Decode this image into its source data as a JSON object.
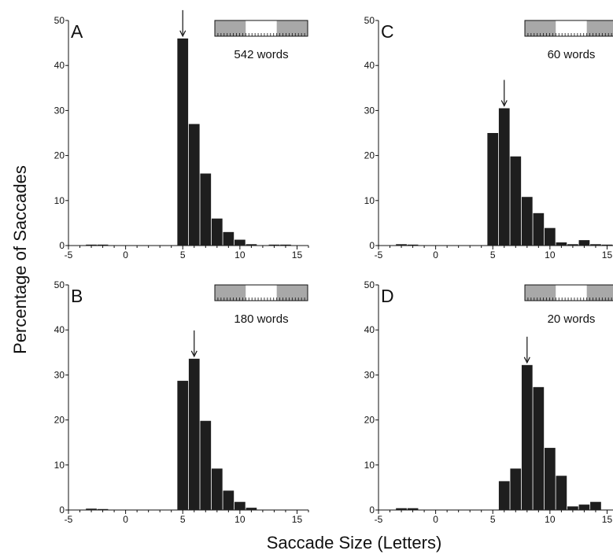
{
  "figure": {
    "ylabel": "Percentage of Saccades",
    "xlabel": "Saccade Size (Letters)",
    "colors": {
      "bar": "#1e1e1e",
      "axis": "#111111",
      "strip_gray": "#a8a8a8",
      "strip_white": "#ffffff"
    }
  },
  "chart_data": [
    {
      "type": "bar",
      "panel": "A",
      "words_label": "542 words",
      "arrow_at": 5,
      "x": [
        -3,
        -2,
        -1,
        0,
        1,
        2,
        3,
        4,
        5,
        6,
        7,
        8,
        9,
        10,
        11,
        12,
        13,
        14,
        15
      ],
      "values": [
        0.2,
        0.1,
        0,
        0,
        0,
        0,
        0,
        0,
        46,
        27,
        16,
        6,
        3,
        1.3,
        0.3,
        0,
        0.2,
        0.2,
        0
      ],
      "xlim": [
        -5,
        16
      ],
      "ylim": [
        0,
        50
      ],
      "xticks": [
        -5,
        0,
        5,
        10,
        15
      ],
      "xtick_labels": [
        "-5",
        "0",
        "5",
        "10",
        "15"
      ],
      "yticks": [
        0,
        10,
        20,
        30,
        40,
        50
      ],
      "ytick_labels": [
        "0",
        "10",
        "20",
        "30",
        "40",
        "50"
      ]
    },
    {
      "type": "bar",
      "panel": "B",
      "words_label": "180 words",
      "arrow_at": 6,
      "x": [
        -3,
        -2,
        -1,
        0,
        1,
        2,
        3,
        4,
        5,
        6,
        7,
        8,
        9,
        10,
        11,
        12,
        13,
        14,
        15
      ],
      "values": [
        0.3,
        0.1,
        0,
        0,
        0,
        0,
        0,
        0,
        28.7,
        33.6,
        19.8,
        9.2,
        4.3,
        1.8,
        0.5,
        0,
        0,
        0,
        0
      ],
      "xlim": [
        -5,
        16
      ],
      "ylim": [
        0,
        50
      ],
      "xticks": [
        -5,
        0,
        5,
        10,
        15
      ],
      "xtick_labels": [
        "-5",
        "0",
        "5",
        "10",
        "15"
      ],
      "yticks": [
        0,
        10,
        20,
        30,
        40,
        50
      ],
      "ytick_labels": [
        "0",
        "10",
        "20",
        "30",
        "40",
        "50"
      ]
    },
    {
      "type": "bar",
      "panel": "C",
      "words_label": "60 words",
      "arrow_at": 6,
      "x": [
        -3,
        -2,
        -1,
        0,
        1,
        2,
        3,
        4,
        5,
        6,
        7,
        8,
        9,
        10,
        11,
        12,
        13,
        14,
        15
      ],
      "values": [
        0.3,
        0.1,
        0,
        0,
        0,
        0,
        0,
        0,
        25,
        30.5,
        19.8,
        10.8,
        7.2,
        3.9,
        0.7,
        0.3,
        1.2,
        0.3,
        0.2
      ],
      "xlim": [
        -5,
        16
      ],
      "ylim": [
        0,
        50
      ],
      "xticks": [
        -5,
        0,
        5,
        10,
        15
      ],
      "xtick_labels": [
        "-5",
        "0",
        "5",
        "10",
        "15"
      ],
      "yticks": [
        0,
        10,
        20,
        30,
        40,
        50
      ],
      "ytick_labels": [
        "0",
        "10",
        "20",
        "30",
        "40",
        "50"
      ]
    },
    {
      "type": "bar",
      "panel": "D",
      "words_label": "20 words",
      "arrow_at": 8,
      "x": [
        -3,
        -2,
        -1,
        0,
        1,
        2,
        3,
        4,
        5,
        6,
        7,
        8,
        9,
        10,
        11,
        12,
        13,
        14,
        15
      ],
      "values": [
        0.4,
        0.4,
        0,
        0,
        0,
        0,
        0,
        0,
        0,
        6.4,
        9.2,
        32.2,
        27.3,
        13.8,
        7.6,
        0.8,
        1.2,
        1.8,
        0
      ],
      "xlim": [
        -5,
        16
      ],
      "ylim": [
        0,
        50
      ],
      "xticks": [
        -5,
        0,
        5,
        10,
        15
      ],
      "xtick_labels": [
        "-5",
        "0",
        "5",
        "10",
        "15"
      ],
      "yticks": [
        0,
        10,
        20,
        30,
        40,
        50
      ],
      "ytick_labels": [
        "0",
        "10",
        "20",
        "30",
        "40",
        "50"
      ]
    }
  ]
}
